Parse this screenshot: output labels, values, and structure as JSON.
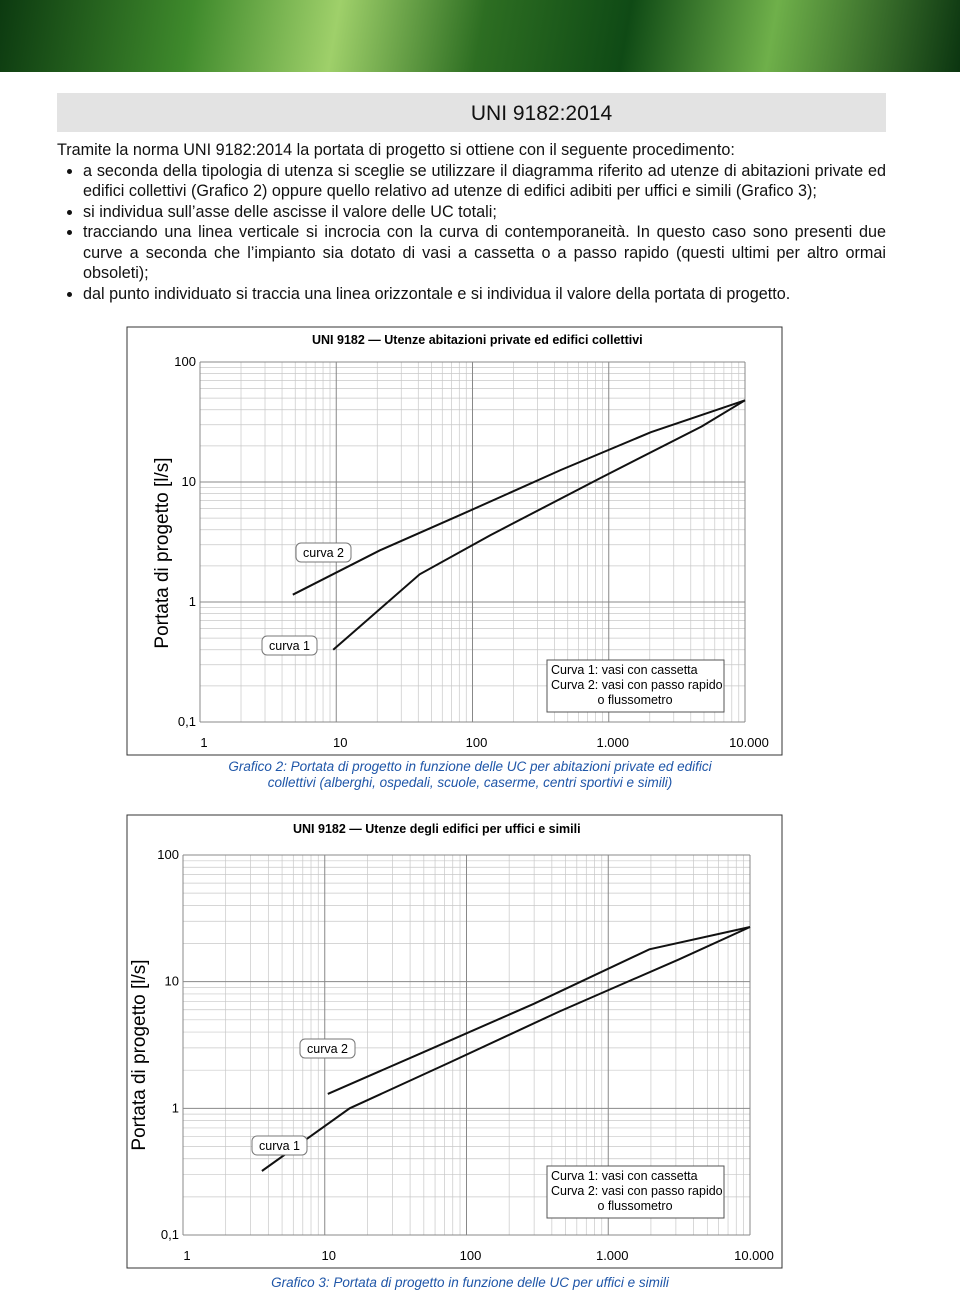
{
  "header": {
    "title": "UNI 9182:2014"
  },
  "text": {
    "intro": "Tramite la norma UNI 9182:2014 la portata di progetto si ottiene con il seguente procedimento:",
    "bullets": [
      "a seconda della tipologia di utenza si sceglie se utilizzare il diagramma riferito ad utenze di abitazioni private ed edifici collettivi (Grafico 2) oppure quello relativo ad utenze di edifici adibiti per uffici e simili (Grafico 3);",
      "si individua sull’asse delle ascisse il valore delle UC totali;",
      "tracciando una linea verticale si incrocia con la curva di contemporaneità. In questo caso sono presenti due curve a seconda che l’impianto sia dotato di vasi a cassetta o a passo rapido (questi ultimi per altro ormai obsoleti);",
      "dal punto individuato si traccia una linea orizzontale e si individua il valore della portata di progetto."
    ]
  },
  "chart_data": [
    {
      "type": "line",
      "title": "UNI 9182 — Utenze abitazioni private ed edifici collettivi",
      "y_label": "Portata di progetto [l/s]",
      "caption": "Grafico 2: Portata di progetto in funzione delle UC per abitazioni private ed edifici collettivi (alberghi, ospedali, scuole, caserme, centri sportivi e simili)",
      "log_x": true,
      "log_y": true,
      "grid": true,
      "xlim": [
        1,
        10000
      ],
      "xticks": [
        1,
        10,
        100,
        {
          "value": 1000,
          "label": "1.000"
        },
        {
          "value": 10000,
          "label": "10.000"
        }
      ],
      "ylim": [
        0.1,
        100
      ],
      "yticks": [
        {
          "value": 0.1,
          "label": "0,1"
        },
        1,
        10,
        100
      ],
      "legend_lines": [
        "Curva 1: vasi con cassetta",
        "Curva 2: vasi con passo rapido",
        "o flussometro"
      ],
      "series": [
        {
          "name": "curva 1",
          "color": "#111111",
          "x": [
            9.5,
            41,
            135,
            870,
            4800,
            10000
          ],
          "values": [
            0.4,
            1.7,
            3.6,
            10.8,
            29,
            48
          ]
        },
        {
          "name": "curva 2",
          "color": "#111111",
          "x": [
            4.8,
            21,
            81,
            445,
            2040,
            10000
          ],
          "values": [
            1.15,
            2.7,
            5.3,
            12.6,
            26,
            48
          ]
        }
      ]
    },
    {
      "type": "line",
      "title": "UNI 9182 — Utenze degli edifici per uffici e simili",
      "y_label": "Portata di progetto [l/s]",
      "caption": "Grafico 3: Portata di progetto in funzione delle UC per uffici e simili",
      "log_x": true,
      "log_y": true,
      "grid": true,
      "xlim": [
        1,
        10000
      ],
      "xticks": [
        1,
        10,
        100,
        {
          "value": 1000,
          "label": "1.000"
        },
        {
          "value": 10000,
          "label": "10.000"
        }
      ],
      "ylim": [
        0.1,
        100
      ],
      "yticks": [
        {
          "value": 0.1,
          "label": "0,1"
        },
        1,
        10,
        100
      ],
      "legend_lines": [
        "Curva 1: vasi con cassetta",
        "Curva 2: vasi con passo rapido",
        "o flussometro"
      ],
      "series": [
        {
          "name": "curva 1",
          "color": "#111111",
          "x": [
            3.6,
            15,
            76,
            450,
            3150,
            10000
          ],
          "values": [
            0.32,
            1.0,
            2.3,
            5.8,
            15,
            27
          ]
        },
        {
          "name": "curva 2",
          "color": "#111111",
          "x": [
            10.5,
            47,
            300,
            1950,
            10000
          ],
          "values": [
            1.3,
            2.7,
            6.7,
            18,
            27
          ]
        }
      ]
    }
  ]
}
